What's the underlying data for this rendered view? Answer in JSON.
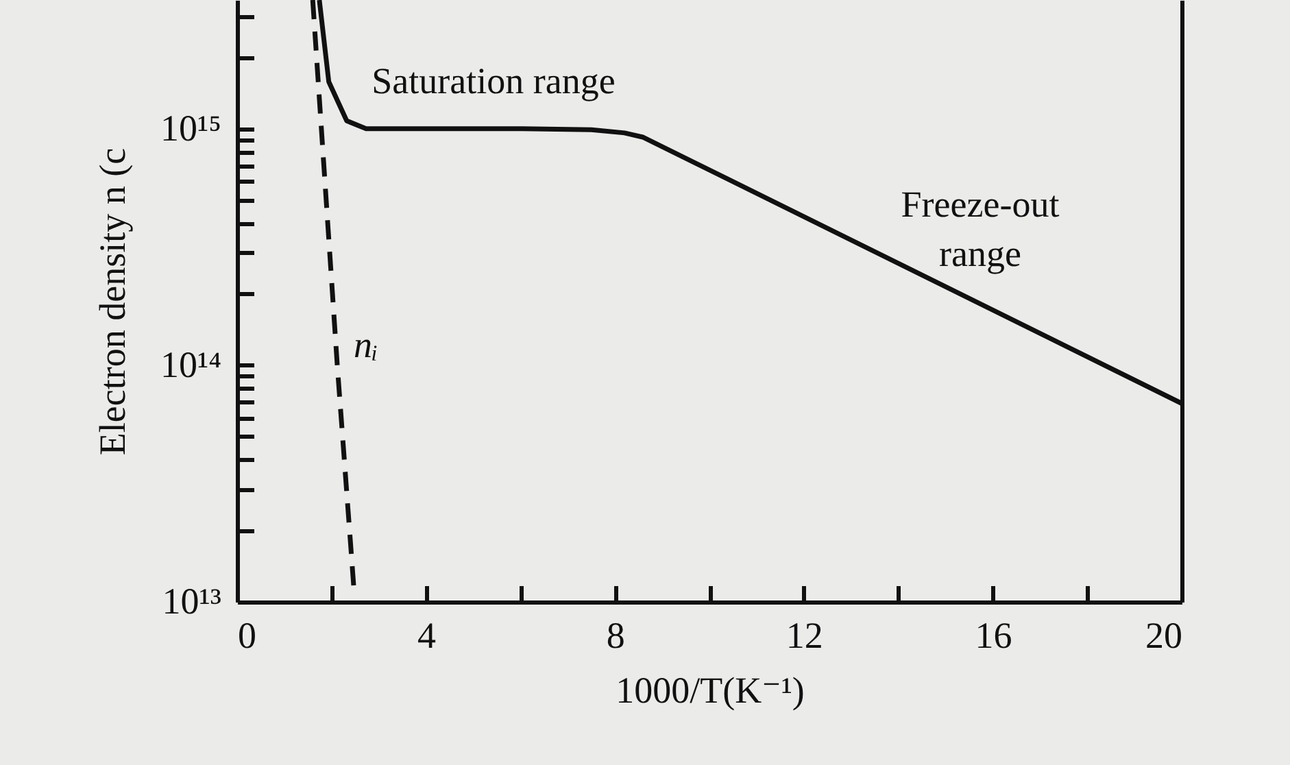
{
  "chart_data": {
    "type": "line",
    "xlabel": "1000/T(K⁻¹)",
    "ylabel": "Electron density n (c",
    "xlim": [
      0,
      20
    ],
    "ylim": [
      10000000000000.0,
      3500000000000000.0
    ],
    "log": "y",
    "xticks": [
      0,
      {
        "value": 2,
        "label": null
      },
      4,
      {
        "value": 6,
        "label": null
      },
      8,
      {
        "value": 10,
        "label": null
      },
      12,
      {
        "value": 14,
        "label": null
      },
      16,
      {
        "value": 18,
        "label": null
      },
      20
    ],
    "yticks": [
      {
        "value": 10000000000000.0,
        "label": "10¹³"
      },
      {
        "value": 20000000000000.0,
        "label": null
      },
      {
        "value": 30000000000000.0,
        "label": null
      },
      {
        "value": 40000000000000.0,
        "label": null
      },
      {
        "value": 50000000000000.0,
        "label": null
      },
      {
        "value": 60000000000000.0,
        "label": null
      },
      {
        "value": 70000000000000.0,
        "label": null
      },
      {
        "value": 80000000000000.0,
        "label": null
      },
      {
        "value": 90000000000000.0,
        "label": null
      },
      {
        "value": 100000000000000.0,
        "label": "10¹⁴"
      },
      {
        "value": 200000000000000.0,
        "label": null
      },
      {
        "value": 300000000000000.0,
        "label": null
      },
      {
        "value": 400000000000000.0,
        "label": null
      },
      {
        "value": 500000000000000.0,
        "label": null
      },
      {
        "value": 600000000000000.0,
        "label": null
      },
      {
        "value": 700000000000000.0,
        "label": null
      },
      {
        "value": 800000000000000.0,
        "label": null
      },
      {
        "value": 900000000000000.0,
        "label": null
      },
      {
        "value": 1000000000000000.0,
        "label": "10¹⁵"
      },
      {
        "value": 2000000000000000.0,
        "label": null
      },
      {
        "value": 3000000000000000.0,
        "label": null
      }
    ],
    "series": [
      {
        "color": "#111111",
        "line_style": "solid",
        "x": [
          1.74,
          1.94,
          2.32,
          2.73,
          3.5,
          6,
          7.5,
          8.2,
          8.6,
          20
        ],
        "values": [
          3500000000000000.0,
          1580000000000000.0,
          1080000000000000.0,
          1000000000000000.0,
          1000000000000000.0,
          1000000000000000.0,
          990000000000000.0,
          960000000000000.0,
          920000000000000.0,
          69000000000000.0
        ]
      },
      {
        "name": "nᵢ",
        "color": "#111111",
        "line_style": "dashed",
        "x": [
          1.6,
          2.12,
          2.47
        ],
        "values": [
          3500000000000000.0,
          100000000000000.0,
          11500000000000.0
        ]
      }
    ],
    "annotations": [
      "Saturation range",
      "Freeze-out\nrange"
    ]
  }
}
